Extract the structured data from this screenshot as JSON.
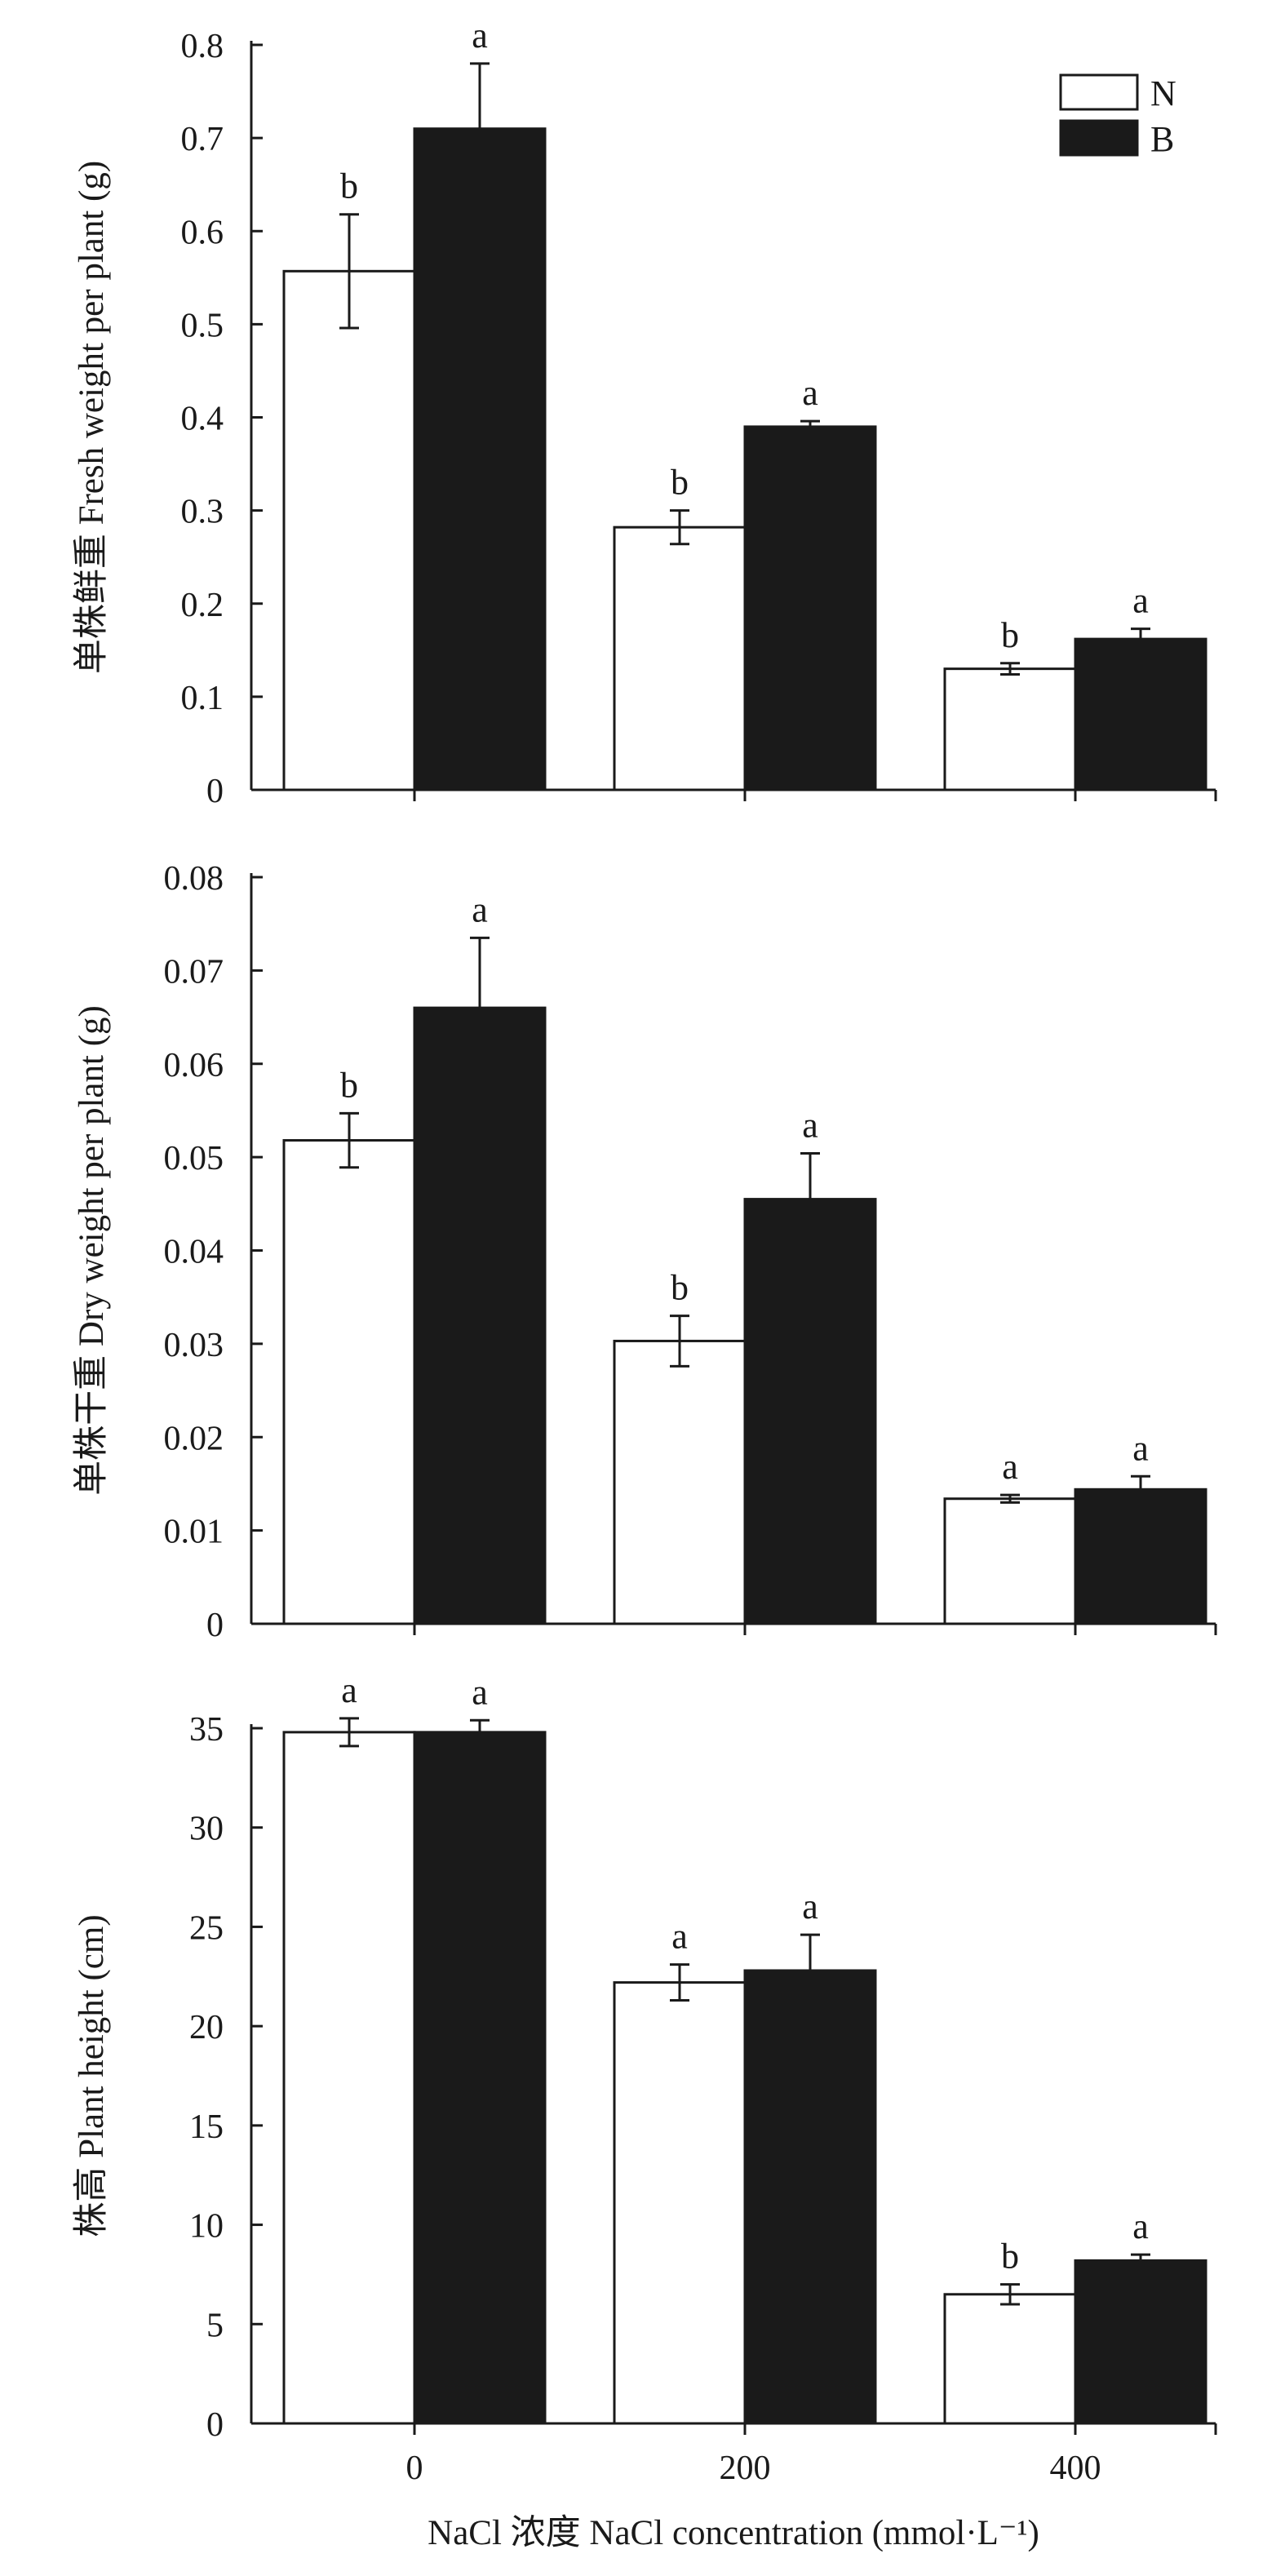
{
  "colors": {
    "series_N": "#ffffff",
    "series_B": "#1a1a1a",
    "axis": "#1a1a1a"
  },
  "legend": {
    "placement": "top-right",
    "items": [
      "N",
      "B"
    ]
  },
  "xlabel": "NaCl 浓度 NaCl concentration (mmol·L⁻¹)",
  "chart_data": [
    {
      "type": "bar",
      "categories": [
        "0",
        "200",
        "400"
      ],
      "ylabel": "单株鲜重 Fresh weight per plant (g)",
      "ylim": [
        0,
        0.8
      ],
      "yticks": [
        "0",
        "0.1",
        "0.2",
        "0.3",
        "0.4",
        "0.5",
        "0.6",
        "0.7",
        "0.8"
      ],
      "series": [
        {
          "name": "N",
          "values": [
            0.557,
            0.282,
            0.13
          ],
          "errors": [
            0.061,
            0.018,
            0.006
          ],
          "letters": [
            "b",
            "b",
            "b"
          ]
        },
        {
          "name": "B",
          "values": [
            0.71,
            0.39,
            0.162
          ],
          "errors": [
            0.07,
            0.006,
            0.011
          ],
          "letters": [
            "a",
            "a",
            "a"
          ]
        }
      ]
    },
    {
      "type": "bar",
      "categories": [
        "0",
        "200",
        "400"
      ],
      "ylabel": "单株干重 Dry weight per plant (g)",
      "ylim": [
        0,
        0.08
      ],
      "yticks": [
        "0",
        "0.01",
        "0.02",
        "0.03",
        "0.04",
        "0.05",
        "0.06",
        "0.07",
        "0.08"
      ],
      "series": [
        {
          "name": "N",
          "values": [
            0.0518,
            0.0303,
            0.0134
          ],
          "errors": [
            0.0029,
            0.0027,
            0.0004
          ],
          "letters": [
            "b",
            "b",
            "a"
          ]
        },
        {
          "name": "B",
          "values": [
            0.066,
            0.0455,
            0.0144
          ],
          "errors": [
            0.0075,
            0.0049,
            0.0014
          ],
          "letters": [
            "a",
            "a",
            "a"
          ]
        }
      ]
    },
    {
      "type": "bar",
      "categories": [
        "0",
        "200",
        "400"
      ],
      "ylabel": "株高 Plant height (cm)",
      "ylim": [
        0,
        35
      ],
      "yticks": [
        "0",
        "5",
        "10",
        "15",
        "20",
        "25",
        "30",
        "35"
      ],
      "series": [
        {
          "name": "N",
          "values": [
            34.8,
            22.2,
            6.5
          ],
          "errors": [
            0.7,
            0.9,
            0.5
          ],
          "letters": [
            "a",
            "a",
            "b"
          ]
        },
        {
          "name": "B",
          "values": [
            34.8,
            22.8,
            8.2
          ],
          "errors": [
            0.6,
            1.8,
            0.3
          ],
          "letters": [
            "a",
            "a",
            "a"
          ]
        }
      ]
    }
  ]
}
